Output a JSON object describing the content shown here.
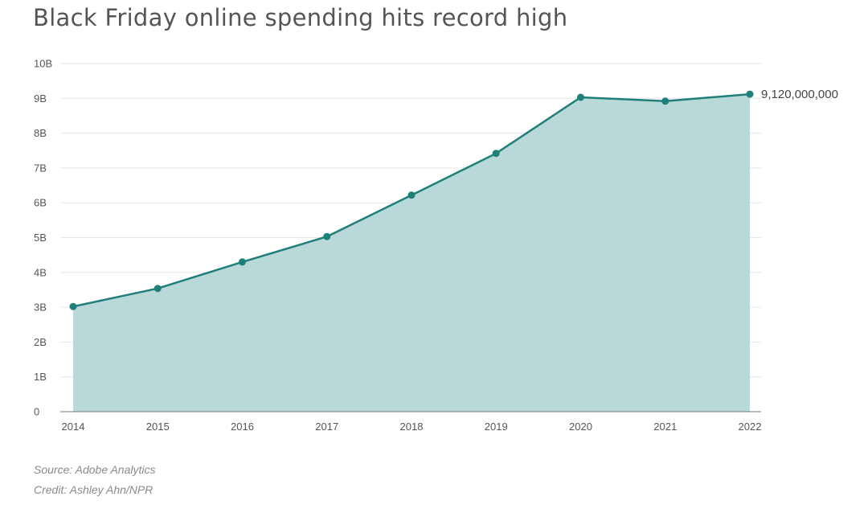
{
  "chart_data": {
    "type": "area",
    "title": "Black Friday online spending hits record high",
    "x": [
      "2014",
      "2015",
      "2016",
      "2017",
      "2018",
      "2019",
      "2020",
      "2021",
      "2022"
    ],
    "values": [
      3020000000,
      3540000000,
      4300000000,
      5030000000,
      6220000000,
      7420000000,
      9030000000,
      8920000000,
      9120000000
    ],
    "ylim": [
      0,
      10000000000
    ],
    "y_ticks": [
      0,
      1000000000,
      2000000000,
      3000000000,
      4000000000,
      5000000000,
      6000000000,
      7000000000,
      8000000000,
      9000000000,
      10000000000
    ],
    "y_tick_labels": [
      "0",
      "1B",
      "2B",
      "3B",
      "4B",
      "5B",
      "6B",
      "7B",
      "8B",
      "9B",
      "10B"
    ],
    "xlabel": "",
    "ylabel": "",
    "grid": true,
    "annotation": "9,120,000,000",
    "line_color": "#1f7f7a",
    "fill_color": "#b9d9d9",
    "source": "Source: Adobe Analytics",
    "credit": "Credit: Ashley Ahn/NPR"
  }
}
